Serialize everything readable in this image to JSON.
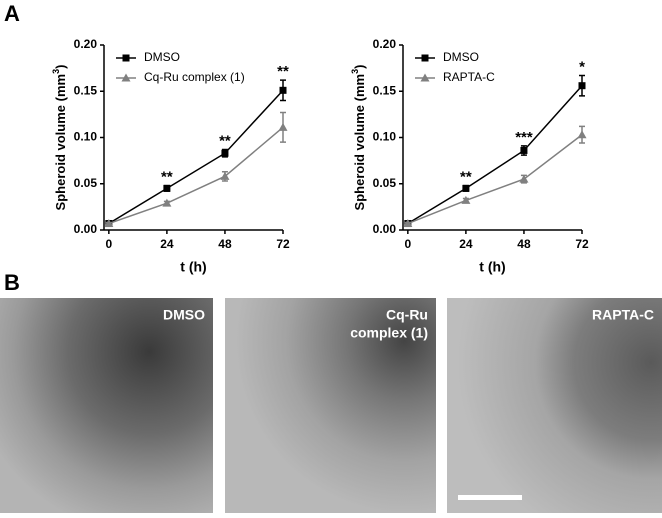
{
  "panel_labels": [
    "A",
    "B"
  ],
  "chart_data": [
    {
      "type": "line",
      "x_label": "t (h)",
      "y_label": [
        "Spheroid volume (mm",
        "3",
        ")"
      ],
      "x": [
        0,
        24,
        48,
        72
      ],
      "xlim": [
        -2,
        72
      ],
      "xticks": [
        0,
        24,
        48,
        72
      ],
      "ylim": [
        0,
        0.2
      ],
      "yticks": [
        {
          "value": 0,
          "label": "0.00"
        },
        {
          "value": 0.05,
          "label": "0.05"
        },
        {
          "value": 0.1,
          "label": "0.10"
        },
        {
          "value": 0.15,
          "label": "0.15"
        },
        {
          "value": 0.2,
          "label": "0.20"
        }
      ],
      "series": [
        {
          "name": "DMSO",
          "color": "#000000",
          "marker": "square",
          "values": [
            0.007,
            0.045,
            0.083,
            0.151
          ],
          "errors": [
            0.002,
            0.003,
            0.004,
            0.011
          ]
        },
        {
          "name": "Cq-Ru complex (1)",
          "color": "#808080",
          "marker": "triangle",
          "values": [
            0.007,
            0.029,
            0.058,
            0.111
          ],
          "errors": [
            0.001,
            0.002,
            0.005,
            0.016
          ]
        }
      ],
      "annotations": [
        {
          "x": 24,
          "text": "**"
        },
        {
          "x": 48,
          "text": "**"
        },
        {
          "x": 72,
          "text": "**"
        }
      ]
    },
    {
      "type": "line",
      "x_label": "t (h)",
      "y_label": [
        "Spheroid volume (mm",
        "3",
        ")"
      ],
      "x": [
        0,
        24,
        48,
        72
      ],
      "xlim": [
        -2,
        72
      ],
      "xticks": [
        0,
        24,
        48,
        72
      ],
      "ylim": [
        0,
        0.2
      ],
      "yticks": [
        {
          "value": 0,
          "label": "0.00"
        },
        {
          "value": 0.05,
          "label": "0.05"
        },
        {
          "value": 0.1,
          "label": "0.10"
        },
        {
          "value": 0.15,
          "label": "0.15"
        },
        {
          "value": 0.2,
          "label": "0.20"
        }
      ],
      "series": [
        {
          "name": "DMSO",
          "color": "#000000",
          "marker": "square",
          "values": [
            0.007,
            0.045,
            0.086,
            0.156
          ],
          "errors": [
            0.002,
            0.003,
            0.005,
            0.011
          ]
        },
        {
          "name": "RAPTA-C",
          "color": "#808080",
          "marker": "triangle",
          "values": [
            0.007,
            0.032,
            0.055,
            0.103
          ],
          "errors": [
            0.001,
            0.002,
            0.004,
            0.009
          ]
        }
      ],
      "annotations": [
        {
          "x": 24,
          "text": "**"
        },
        {
          "x": 48,
          "text": "***"
        },
        {
          "x": 72,
          "text": "*"
        }
      ]
    }
  ],
  "images": [
    {
      "label": [
        "DMSO"
      ]
    },
    {
      "label": [
        "Cq-Ru",
        "complex (1)"
      ]
    },
    {
      "label": [
        "RAPTA-C"
      ]
    }
  ]
}
